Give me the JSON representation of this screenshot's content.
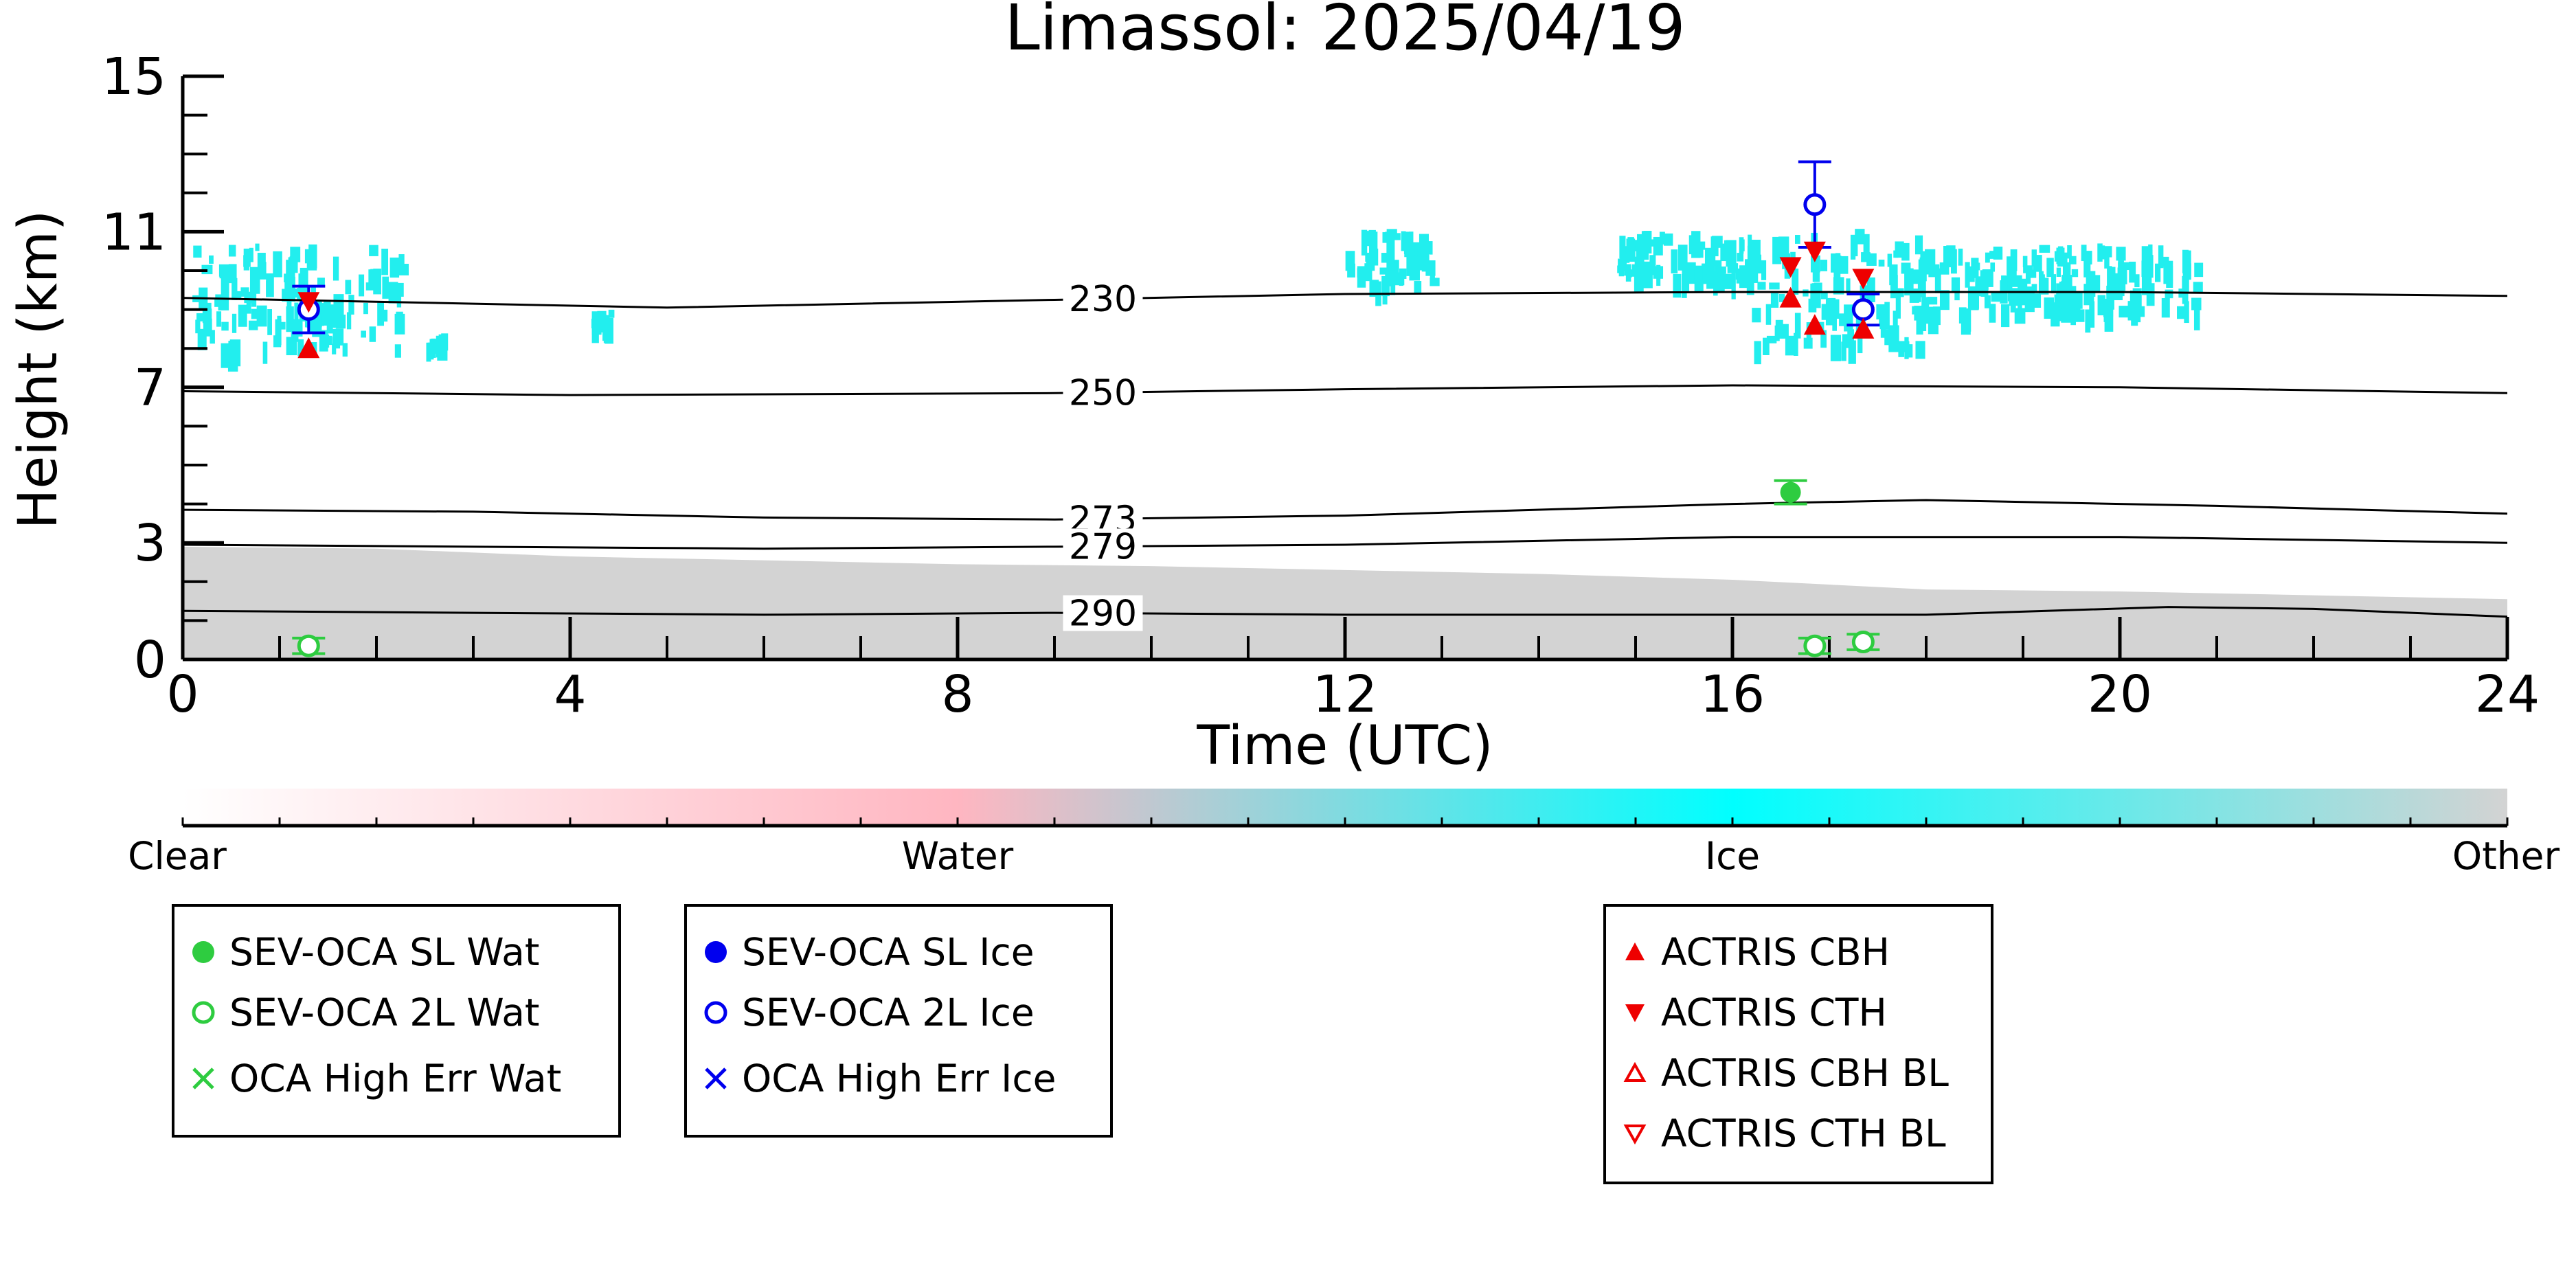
{
  "chart_data": {
    "type": "scatter",
    "title": "Limassol: 2025/04/19",
    "xlabel": "Time (UTC)",
    "ylabel": "Height (km)",
    "xlim": [
      0,
      24
    ],
    "ylim": [
      0,
      15
    ],
    "x_ticks": [
      "0",
      "4",
      "8",
      "12",
      "16",
      "20",
      "24"
    ],
    "y_ticks": [
      "0",
      "3",
      "7",
      "11",
      "15"
    ],
    "isotherms": [
      {
        "label": "230",
        "points": [
          [
            0,
            9.3
          ],
          [
            3,
            9.15
          ],
          [
            5,
            9.05
          ],
          [
            9,
            9.25
          ],
          [
            12,
            9.4
          ],
          [
            16,
            9.45
          ],
          [
            20,
            9.45
          ],
          [
            24,
            9.35
          ]
        ]
      },
      {
        "label": "250",
        "points": [
          [
            0,
            6.9
          ],
          [
            4,
            6.8
          ],
          [
            9,
            6.85
          ],
          [
            12,
            6.95
          ],
          [
            16,
            7.05
          ],
          [
            20,
            7.0
          ],
          [
            24,
            6.85
          ]
        ]
      },
      {
        "label": "273",
        "points": [
          [
            0,
            3.85
          ],
          [
            3,
            3.8
          ],
          [
            6,
            3.65
          ],
          [
            9,
            3.6
          ],
          [
            12,
            3.7
          ],
          [
            16,
            4.0
          ],
          [
            18,
            4.1
          ],
          [
            21,
            3.95
          ],
          [
            24,
            3.75
          ]
        ]
      },
      {
        "label": "279",
        "points": [
          [
            0,
            2.95
          ],
          [
            3,
            2.9
          ],
          [
            6,
            2.85
          ],
          [
            9,
            2.9
          ],
          [
            12,
            2.95
          ],
          [
            16,
            3.15
          ],
          [
            20,
            3.15
          ],
          [
            24,
            3.0
          ]
        ]
      },
      {
        "label": "290",
        "points": [
          [
            0,
            1.25
          ],
          [
            3,
            1.2
          ],
          [
            6,
            1.15
          ],
          [
            9,
            1.2
          ],
          [
            12,
            1.15
          ],
          [
            15,
            1.15
          ],
          [
            18,
            1.15
          ],
          [
            20.5,
            1.35
          ],
          [
            22,
            1.3
          ],
          [
            24,
            1.1
          ]
        ]
      }
    ],
    "other_region": [
      [
        0,
        2.9
      ],
      [
        2,
        2.85
      ],
      [
        4,
        2.65
      ],
      [
        6,
        2.55
      ],
      [
        8,
        2.45
      ],
      [
        10,
        2.4
      ],
      [
        12,
        2.3
      ],
      [
        14,
        2.2
      ],
      [
        16,
        2.05
      ],
      [
        18,
        1.8
      ],
      [
        20,
        1.75
      ],
      [
        22,
        1.65
      ],
      [
        24,
        1.55
      ]
    ],
    "series": [
      {
        "name": "SEV-OCA SL Wat",
        "marker": "filled-circle",
        "color": "#2ecc40",
        "points": [
          {
            "x": 16.6,
            "y": 4.3,
            "err": 0.3
          }
        ]
      },
      {
        "name": "SEV-OCA 2L Wat",
        "marker": "open-circle",
        "color": "#2ecc40",
        "points": [
          {
            "x": 1.3,
            "y": 0.35,
            "err": 0.2
          },
          {
            "x": 16.85,
            "y": 0.35,
            "err": 0.2
          },
          {
            "x": 17.35,
            "y": 0.45,
            "err": 0.2
          }
        ]
      },
      {
        "name": "OCA High Err Wat",
        "marker": "x",
        "color": "#2ecc40",
        "points": []
      },
      {
        "name": "SEV-OCA SL Ice",
        "marker": "filled-circle",
        "color": "#0000ee",
        "points": []
      },
      {
        "name": "SEV-OCA 2L Ice",
        "marker": "open-circle",
        "color": "#0000ee",
        "points": [
          {
            "x": 1.3,
            "y": 9.0,
            "err": 0.6
          },
          {
            "x": 16.85,
            "y": 11.7,
            "err": 1.1
          },
          {
            "x": 17.35,
            "y": 9.0,
            "err": 0.4
          }
        ]
      },
      {
        "name": "OCA High Err Ice",
        "marker": "x",
        "color": "#0000ee",
        "points": []
      },
      {
        "name": "ACTRIS CBH",
        "marker": "triangle-up",
        "color": "#ee0000",
        "points": [
          {
            "x": 1.3,
            "y": 8.0
          },
          {
            "x": 16.6,
            "y": 9.3
          },
          {
            "x": 16.85,
            "y": 8.6
          },
          {
            "x": 17.35,
            "y": 8.5
          }
        ]
      },
      {
        "name": "ACTRIS CTH",
        "marker": "triangle-down",
        "color": "#ee0000",
        "points": [
          {
            "x": 1.3,
            "y": 9.2
          },
          {
            "x": 16.6,
            "y": 10.1
          },
          {
            "x": 16.85,
            "y": 10.5
          },
          {
            "x": 17.35,
            "y": 9.8
          }
        ]
      },
      {
        "name": "ACTRIS CBH BL",
        "marker": "open-triangle-up",
        "color": "#ee0000",
        "points": []
      },
      {
        "name": "ACTRIS CTH BL",
        "marker": "open-triangle-down",
        "color": "#ee0000",
        "points": []
      }
    ],
    "colorbar": {
      "labels": [
        "Clear",
        "Water",
        "Ice",
        "Other"
      ],
      "colors": [
        "#ffffff",
        "#ffb6c1",
        "#00ffff",
        "#d3d3d3"
      ]
    },
    "ice_cloud_color": "#22eeee",
    "other_color": "#d3d3d3",
    "legend_groups": [
      [
        "SEV-OCA SL Wat",
        "SEV-OCA 2L Wat",
        "OCA High Err Wat"
      ],
      [
        "SEV-OCA SL Ice",
        "SEV-OCA 2L Ice",
        "OCA High Err Ice"
      ],
      [
        "ACTRIS CBH",
        "ACTRIS CTH",
        "ACTRIS CBH BL",
        "ACTRIS CTH BL"
      ]
    ]
  }
}
